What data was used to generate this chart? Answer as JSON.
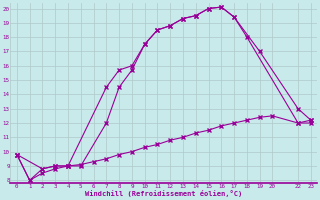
{
  "xlabel": "Windchill (Refroidissement éolien,°C)",
  "bg_color": "#c8eaea",
  "line_color": "#990099",
  "grid_color": "#b0c8c8",
  "xlim": [
    -0.5,
    23.5
  ],
  "ylim": [
    7.8,
    20.4
  ],
  "xtick_vals": [
    0,
    1,
    2,
    3,
    4,
    5,
    6,
    7,
    8,
    9,
    10,
    11,
    12,
    13,
    14,
    15,
    16,
    17,
    18,
    19,
    20,
    22,
    23
  ],
  "xtick_labels": [
    "0",
    "1",
    "2",
    "3",
    "4",
    "5",
    "6",
    "7",
    "8",
    "9",
    "10",
    "11",
    "12",
    "13",
    "14",
    "15",
    "16",
    "17",
    "18",
    "19",
    "20",
    "22",
    "23"
  ],
  "ytick_vals": [
    8,
    9,
    10,
    11,
    12,
    13,
    14,
    15,
    16,
    17,
    18,
    19,
    20
  ],
  "ytick_labels": [
    "8",
    "9",
    "10",
    "11",
    "12",
    "13",
    "14",
    "15",
    "16",
    "17",
    "18",
    "19",
    "20"
  ],
  "line1_x": [
    0,
    1,
    2,
    3,
    4,
    5,
    7,
    8,
    9,
    10,
    11,
    12,
    13,
    14,
    15,
    16,
    17,
    18,
    22,
    23
  ],
  "line1_y": [
    9.8,
    8.0,
    8.8,
    9.0,
    9.0,
    9.0,
    12.0,
    14.5,
    15.7,
    17.5,
    18.5,
    18.8,
    19.3,
    19.5,
    20.0,
    20.1,
    19.4,
    18.0,
    12.0,
    12.2
  ],
  "line2_x": [
    0,
    2,
    3,
    4,
    7,
    8,
    9,
    10,
    11,
    12,
    13,
    14,
    15,
    16,
    17,
    19,
    22,
    23
  ],
  "line2_y": [
    9.8,
    8.8,
    9.0,
    9.0,
    14.5,
    15.7,
    16.0,
    17.5,
    18.5,
    18.8,
    19.3,
    19.5,
    20.0,
    20.1,
    19.4,
    17.0,
    13.0,
    12.2
  ],
  "line3_x": [
    0,
    1,
    2,
    3,
    4,
    5,
    6,
    7,
    8,
    9,
    10,
    11,
    12,
    13,
    14,
    15,
    16,
    17,
    18,
    19,
    20,
    22,
    23
  ],
  "line3_y": [
    9.8,
    8.0,
    8.5,
    8.8,
    9.0,
    9.1,
    9.3,
    9.5,
    9.8,
    10.0,
    10.3,
    10.5,
    10.8,
    11.0,
    11.3,
    11.5,
    11.8,
    12.0,
    12.2,
    12.4,
    12.5,
    12.0,
    12.0
  ]
}
